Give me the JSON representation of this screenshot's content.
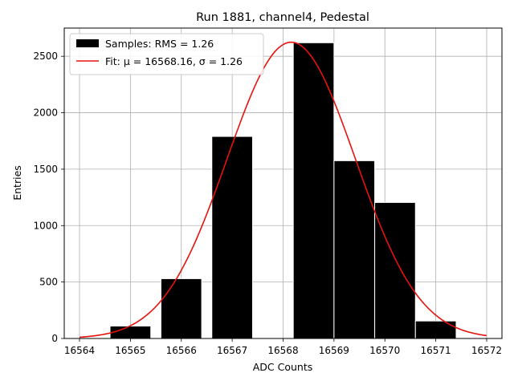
{
  "chart_data": {
    "type": "bar",
    "title": "Run 1881, channel4, Pedestal",
    "xlabel": "ADC Counts",
    "ylabel": "Entries",
    "xlim": [
      16563.7,
      16572.3
    ],
    "ylim": [
      0,
      2750
    ],
    "xticks": [
      "16564",
      "16565",
      "16566",
      "16567",
      "16568",
      "16569",
      "16570",
      "16571",
      "16572"
    ],
    "yticks": [
      "0",
      "500",
      "1000",
      "1500",
      "2000",
      "2500"
    ],
    "grid": true,
    "legend_position": "top-left",
    "bin_width": 0.8,
    "histogram": {
      "name": "Samples: RMS = 1.26",
      "color": "#000000",
      "bins": [
        {
          "x": 16565,
          "count": 110
        },
        {
          "x": 16566,
          "count": 530
        },
        {
          "x": 16567,
          "count": 1790
        },
        {
          "x": 16568,
          "count": 0
        },
        {
          "x": 16568.6,
          "count": 2620
        },
        {
          "x": 16569.4,
          "count": 1575
        },
        {
          "x": 16570.2,
          "count": 1205
        },
        {
          "x": 16571,
          "count": 155
        }
      ]
    },
    "fit": {
      "name": "Fit: μ = 16568.16, σ = 1.26",
      "color": "#e8120c",
      "mu": 16568.16,
      "sigma": 1.26,
      "amplitude": 2625,
      "x_range": [
        16564,
        16572
      ]
    }
  }
}
